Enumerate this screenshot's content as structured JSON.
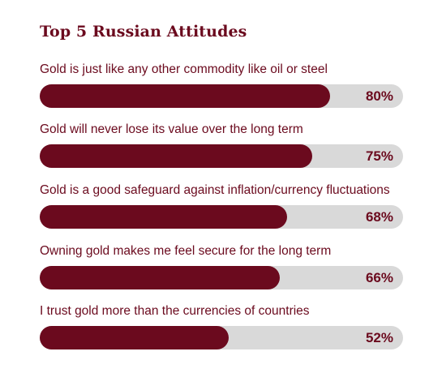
{
  "title": "Top 5 Russian Attitudes",
  "colors": {
    "bar_fill": "#6b0a1e",
    "bar_track": "#d9d9d9",
    "text": "#6b0a1e"
  },
  "chart_data": {
    "type": "bar",
    "orientation": "horizontal",
    "title": "Top 5 Russian Attitudes",
    "categories": [
      "Gold is just like any other commodity like oil or steel",
      "Gold will never lose its value over the long term",
      "Gold is a good safeguard against inflation/currency fluctuations",
      "Owning gold makes me feel secure for the long term",
      "I trust gold more than the currencies of countries"
    ],
    "values": [
      80,
      75,
      68,
      66,
      52
    ],
    "value_labels": [
      "80%",
      "75%",
      "68%",
      "66%",
      "52%"
    ],
    "xlim": [
      0,
      100
    ],
    "grid": false,
    "legend": "none"
  }
}
